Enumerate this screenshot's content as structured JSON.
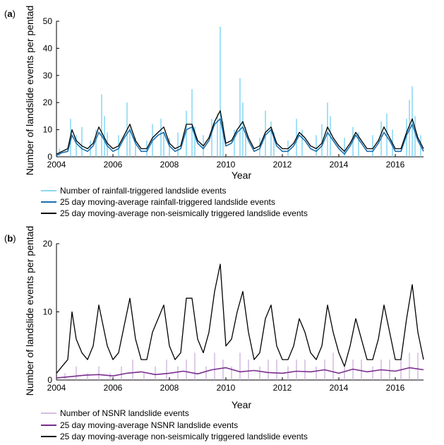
{
  "chart_data": [
    {
      "type": "line",
      "panel_label": "(a)",
      "panel_letter": "a",
      "xlabel": "Year",
      "ylabel": "Number of landslide events per pentad",
      "xlim": [
        2004,
        2017
      ],
      "ylim": [
        0,
        50
      ],
      "x_ticks": [
        2004,
        2006,
        2008,
        2010,
        2012,
        2014,
        2016
      ],
      "y_ticks": [
        0,
        10,
        20,
        30,
        40,
        50
      ],
      "grid": false,
      "legend_position": "below plot",
      "series": [
        {
          "name": "Number of rainfall-triggered landslide events",
          "color": "#66ccf0",
          "style": "spikes",
          "x": [
            2004.1,
            2004.5,
            2004.7,
            2004.9,
            2005.2,
            2005.4,
            2005.6,
            2005.7,
            2005.8,
            2006.2,
            2006.5,
            2006.6,
            2006.8,
            2007.2,
            2007.4,
            2007.7,
            2007.8,
            2008.0,
            2008.3,
            2008.6,
            2008.8,
            2008.9,
            2009.2,
            2009.5,
            2009.7,
            2009.8,
            2009.9,
            2010.3,
            2010.5,
            2010.6,
            2010.7,
            2011.2,
            2011.4,
            2011.6,
            2011.7,
            2012.2,
            2012.5,
            2012.7,
            2013.2,
            2013.4,
            2013.6,
            2013.7,
            2014.2,
            2014.5,
            2014.7,
            2015.2,
            2015.5,
            2015.7,
            2015.9,
            2016.4,
            2016.5,
            2016.6,
            2016.7,
            2016.9
          ],
          "y": [
            3,
            14,
            8,
            11,
            6,
            10,
            23,
            15,
            9,
            8,
            20,
            11,
            7,
            6,
            12,
            14,
            9,
            7,
            9,
            17,
            25,
            11,
            8,
            14,
            16,
            48,
            13,
            10,
            29,
            20,
            11,
            7,
            17,
            13,
            9,
            6,
            14,
            10,
            8,
            12,
            20,
            15,
            7,
            11,
            9,
            8,
            13,
            16,
            10,
            14,
            21,
            26,
            15,
            8
          ]
        },
        {
          "name": "25 day moving-average rainfall-triggered landslide events",
          "color": "#1a6fae",
          "x": [
            2004.0,
            2004.2,
            2004.4,
            2004.55,
            2004.7,
            2004.9,
            2005.1,
            2005.3,
            2005.5,
            2005.65,
            2005.8,
            2006.0,
            2006.2,
            2006.4,
            2006.6,
            2006.8,
            2007.0,
            2007.2,
            2007.4,
            2007.6,
            2007.8,
            2008.0,
            2008.2,
            2008.4,
            2008.6,
            2008.8,
            2009.0,
            2009.2,
            2009.4,
            2009.6,
            2009.8,
            2010.0,
            2010.2,
            2010.4,
            2010.6,
            2010.8,
            2011.0,
            2011.2,
            2011.4,
            2011.6,
            2011.8,
            2012.0,
            2012.2,
            2012.4,
            2012.6,
            2012.8,
            2013.0,
            2013.2,
            2013.4,
            2013.6,
            2013.8,
            2014.0,
            2014.2,
            2014.4,
            2014.6,
            2014.8,
            2015.0,
            2015.2,
            2015.4,
            2015.6,
            2015.8,
            2016.0,
            2016.2,
            2016.4,
            2016.6,
            2016.8,
            2017.0
          ],
          "y": [
            0.5,
            1.5,
            2,
            8,
            5,
            3,
            2,
            4,
            9,
            7,
            4,
            2,
            3,
            7,
            10,
            5,
            2,
            2,
            6,
            8,
            9,
            4,
            2,
            3,
            10,
            11,
            5,
            3,
            6,
            12,
            14,
            4,
            5,
            9,
            11,
            6,
            2,
            3,
            8,
            10,
            4,
            2,
            2,
            4,
            8,
            6,
            3,
            2,
            4,
            9,
            6,
            3,
            1,
            4,
            8,
            5,
            2,
            2,
            5,
            9,
            6,
            2,
            2,
            8,
            12,
            6,
            2
          ]
        },
        {
          "name": "25 day moving-average non-seismically triggered landslide events",
          "color": "#000000",
          "x": [
            2004.0,
            2004.2,
            2004.4,
            2004.55,
            2004.7,
            2004.9,
            2005.1,
            2005.3,
            2005.5,
            2005.65,
            2005.8,
            2006.0,
            2006.2,
            2006.4,
            2006.6,
            2006.8,
            2007.0,
            2007.2,
            2007.4,
            2007.6,
            2007.8,
            2008.0,
            2008.2,
            2008.4,
            2008.6,
            2008.8,
            2009.0,
            2009.2,
            2009.4,
            2009.6,
            2009.8,
            2010.0,
            2010.2,
            2010.4,
            2010.6,
            2010.8,
            2011.0,
            2011.2,
            2011.4,
            2011.6,
            2011.8,
            2012.0,
            2012.2,
            2012.4,
            2012.6,
            2012.8,
            2013.0,
            2013.2,
            2013.4,
            2013.6,
            2013.8,
            2014.0,
            2014.2,
            2014.4,
            2014.6,
            2014.8,
            2015.0,
            2015.2,
            2015.4,
            2015.6,
            2015.8,
            2016.0,
            2016.2,
            2016.4,
            2016.6,
            2016.8,
            2017.0
          ],
          "y": [
            1,
            2,
            3,
            10,
            6,
            4,
            3,
            5,
            11,
            8,
            5,
            3,
            4,
            8,
            12,
            6,
            3,
            3,
            7,
            9,
            11,
            5,
            3,
            4,
            12,
            12,
            6,
            4,
            7,
            13,
            17,
            5,
            6,
            10,
            13,
            7,
            3,
            4,
            9,
            11,
            5,
            3,
            3,
            5,
            9,
            7,
            4,
            3,
            5,
            11,
            7,
            4,
            2,
            5,
            9,
            6,
            3,
            3,
            6,
            11,
            7,
            3,
            3,
            9,
            14,
            7,
            3
          ]
        }
      ]
    },
    {
      "type": "line",
      "panel_label": "(b)",
      "panel_letter": "b",
      "xlabel": "Year",
      "ylabel": "Number of landslide events per pentad",
      "xlim": [
        2004,
        2017
      ],
      "ylim": [
        0,
        20
      ],
      "x_ticks": [
        2004,
        2006,
        2008,
        2010,
        2012,
        2014,
        2016
      ],
      "y_ticks": [
        0,
        10,
        20
      ],
      "grid": false,
      "legend_position": "below plot",
      "series": [
        {
          "name": "Number of NSNR landslide events",
          "color": "#c8a8d8",
          "style": "spikes",
          "x": [
            2004.3,
            2004.7,
            2005.1,
            2005.5,
            2005.9,
            2006.3,
            2006.7,
            2007.1,
            2007.5,
            2007.9,
            2008.3,
            2008.6,
            2008.9,
            2009.3,
            2009.6,
            2009.9,
            2010.2,
            2010.5,
            2010.8,
            2011.2,
            2011.5,
            2011.8,
            2012.2,
            2012.5,
            2012.8,
            2013.2,
            2013.5,
            2013.8,
            2014.2,
            2014.5,
            2014.8,
            2015.2,
            2015.5,
            2015.8,
            2016.2,
            2016.5,
            2016.8
          ],
          "y": [
            1,
            2,
            1,
            2,
            1,
            2,
            3,
            1,
            2,
            3,
            2,
            3,
            4,
            2,
            4,
            3,
            2,
            4,
            3,
            2,
            3,
            3,
            2,
            3,
            3,
            2,
            3,
            4,
            2,
            3,
            3,
            2,
            3,
            3,
            3,
            4,
            4
          ]
        },
        {
          "name": "25 day moving-average NSNR landslide events",
          "color": "#7b2d8e",
          "x": [
            2004.0,
            2004.5,
            2005.0,
            2005.5,
            2006.0,
            2006.5,
            2007.0,
            2007.5,
            2008.0,
            2008.5,
            2009.0,
            2009.5,
            2010.0,
            2010.5,
            2011.0,
            2011.5,
            2012.0,
            2012.5,
            2013.0,
            2013.5,
            2014.0,
            2014.5,
            2015.0,
            2015.5,
            2016.0,
            2016.5,
            2017.0
          ],
          "y": [
            0.3,
            0.5,
            0.7,
            0.8,
            0.6,
            1.0,
            1.2,
            0.8,
            1.0,
            1.3,
            0.9,
            1.5,
            1.8,
            1.2,
            1.4,
            1.1,
            1.0,
            1.3,
            1.2,
            1.5,
            1.0,
            1.6,
            1.2,
            1.5,
            1.3,
            1.8,
            1.5
          ]
        },
        {
          "name": "25 day moving-average non-seismically triggered landslide events",
          "color": "#000000",
          "x": [
            2004.0,
            2004.2,
            2004.4,
            2004.55,
            2004.7,
            2004.9,
            2005.1,
            2005.3,
            2005.5,
            2005.65,
            2005.8,
            2006.0,
            2006.2,
            2006.4,
            2006.6,
            2006.8,
            2007.0,
            2007.2,
            2007.4,
            2007.6,
            2007.8,
            2008.0,
            2008.2,
            2008.4,
            2008.6,
            2008.8,
            2009.0,
            2009.2,
            2009.4,
            2009.6,
            2009.8,
            2010.0,
            2010.2,
            2010.4,
            2010.6,
            2010.8,
            2011.0,
            2011.2,
            2011.4,
            2011.6,
            2011.8,
            2012.0,
            2012.2,
            2012.4,
            2012.6,
            2012.8,
            2013.0,
            2013.2,
            2013.4,
            2013.6,
            2013.8,
            2014.0,
            2014.2,
            2014.4,
            2014.6,
            2014.8,
            2015.0,
            2015.2,
            2015.4,
            2015.6,
            2015.8,
            2016.0,
            2016.2,
            2016.4,
            2016.6,
            2016.8,
            2017.0
          ],
          "y": [
            1,
            2,
            3,
            10,
            6,
            4,
            3,
            5,
            11,
            8,
            5,
            3,
            4,
            8,
            12,
            6,
            3,
            3,
            7,
            9,
            11,
            5,
            3,
            4,
            12,
            12,
            6,
            4,
            7,
            13,
            17,
            5,
            6,
            10,
            13,
            7,
            3,
            4,
            9,
            11,
            5,
            3,
            3,
            5,
            9,
            7,
            4,
            3,
            5,
            11,
            7,
            4,
            2,
            5,
            9,
            6,
            3,
            3,
            6,
            11,
            7,
            3,
            3,
            9,
            14,
            7,
            3
          ]
        }
      ]
    }
  ]
}
